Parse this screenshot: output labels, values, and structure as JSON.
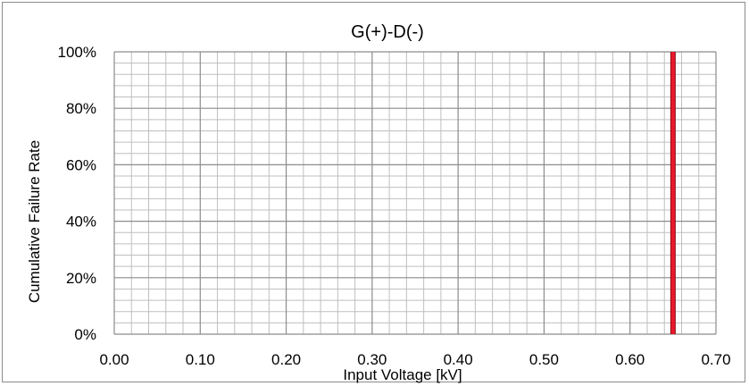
{
  "chart_data": {
    "type": "line",
    "title": "G(+)-D(-)",
    "xlabel": "Input Voltage [kV]",
    "ylabel": "Cumulative Failure Rate",
    "xlim": [
      0,
      0.7
    ],
    "ylim": [
      0,
      1
    ],
    "x_ticks": [
      "0.00",
      "0.10",
      "0.20",
      "0.30",
      "0.40",
      "0.50",
      "0.60",
      "0.70"
    ],
    "y_ticks": [
      "0%",
      "20%",
      "40%",
      "60%",
      "80%",
      "100%"
    ],
    "grid": true,
    "legend": "none",
    "series": [
      {
        "color": "#e8192c",
        "edge_color": "#8b0a12",
        "points": [
          {
            "x": 0.65,
            "y": 0.0
          },
          {
            "x": 0.65,
            "y": 1.0
          }
        ]
      }
    ]
  }
}
